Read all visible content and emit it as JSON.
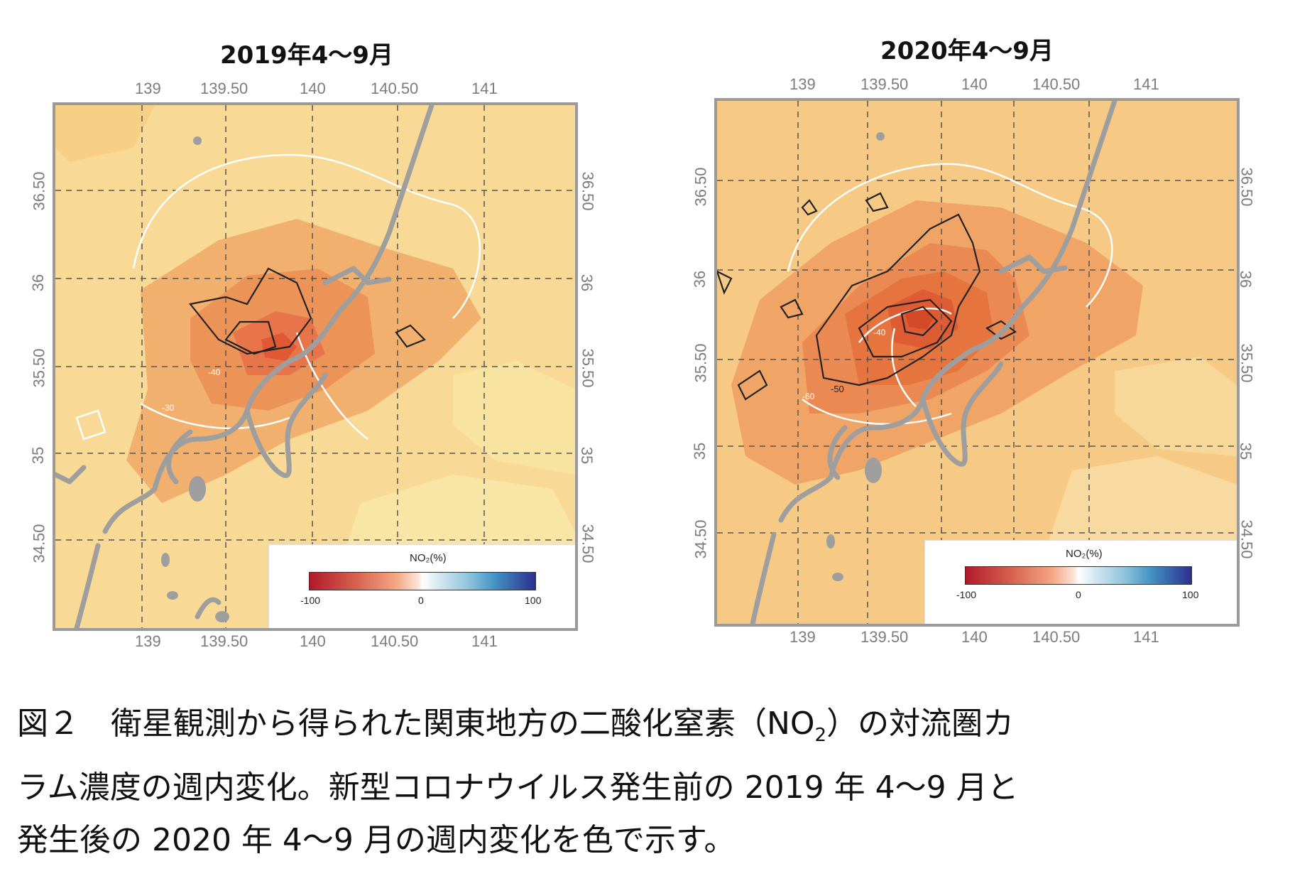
{
  "panels": [
    {
      "title": "2019年4～9月",
      "lon_ticks": [
        "139",
        "139.50",
        "140",
        "140.50",
        "141"
      ],
      "lat_ticks": [
        "36.50",
        "36",
        "35.50",
        "35",
        "34.50"
      ],
      "legend": {
        "title": "NO₂(%)",
        "min": "-100",
        "mid": "0",
        "max": "100"
      },
      "contour_labels": [
        "-40",
        "-30"
      ]
    },
    {
      "title": "2020年4～9月",
      "lon_ticks": [
        "139",
        "139.50",
        "140",
        "140.50",
        "141"
      ],
      "lat_ticks": [
        "36.50",
        "36",
        "35.50",
        "35",
        "34.50"
      ],
      "legend": {
        "title": "NO₂(%)",
        "min": "-100",
        "mid": "0",
        "max": "100"
      },
      "contour_labels": [
        "-50",
        "-60",
        "-40"
      ]
    }
  ],
  "caption": {
    "line1_a": "図２　衛星観測から得られた関東地方の二酸化窒素（NO",
    "line1_sub": "2",
    "line1_b": "）の対流圏カ",
    "line2": "ラム濃度の週内変化。新型コロナウイルス発生前の 2019 年 4～9 月と",
    "line3": "発生後の 2020 年 4～9 月の週内変化を色で示す。"
  },
  "colors": {
    "map_base": "#f7d590",
    "reduction_light": "#f2b06e",
    "reduction_strong": "#e8754a",
    "coastline": "#9e9e9e",
    "grid": "#555555"
  }
}
